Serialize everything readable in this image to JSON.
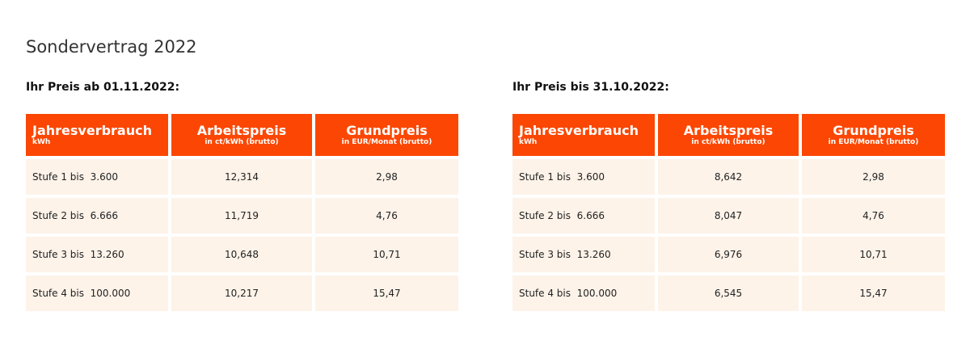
{
  "title": "Sondervertrag 2022",
  "header": {
    "col1": "Jahresverbrauch",
    "col1_sub": "kWh",
    "col2": "Arbeitspreis",
    "col2_sub": "in ct/kWh (brutto)",
    "col3": "Grundpreis",
    "col3_sub": "in EUR/Monat (brutto)"
  },
  "colors": {
    "header_bg": "#fb4703",
    "row_bg": "#fdf3e9"
  },
  "tables": [
    {
      "subtitle": "Ihr Preis ab 01.11.2022:",
      "rows": [
        {
          "stufe": "Stufe 1 bis  3.600",
          "arbeitspreis": "12,314",
          "grundpreis": "2,98"
        },
        {
          "stufe": "Stufe 2 bis  6.666",
          "arbeitspreis": "11,719",
          "grundpreis": "4,76"
        },
        {
          "stufe": "Stufe 3 bis  13.260",
          "arbeitspreis": "10,648",
          "grundpreis": "10,71"
        },
        {
          "stufe": "Stufe 4 bis  100.000",
          "arbeitspreis": "10,217",
          "grundpreis": "15,47"
        }
      ]
    },
    {
      "subtitle": "Ihr Preis bis 31.10.2022:",
      "rows": [
        {
          "stufe": "Stufe 1 bis  3.600",
          "arbeitspreis": "8,642",
          "grundpreis": "2,98"
        },
        {
          "stufe": "Stufe 2 bis  6.666",
          "arbeitspreis": "8,047",
          "grundpreis": "4,76"
        },
        {
          "stufe": "Stufe 3 bis  13.260",
          "arbeitspreis": "6,976",
          "grundpreis": "10,71"
        },
        {
          "stufe": "Stufe 4 bis  100.000",
          "arbeitspreis": "6,545",
          "grundpreis": "15,47"
        }
      ]
    }
  ]
}
